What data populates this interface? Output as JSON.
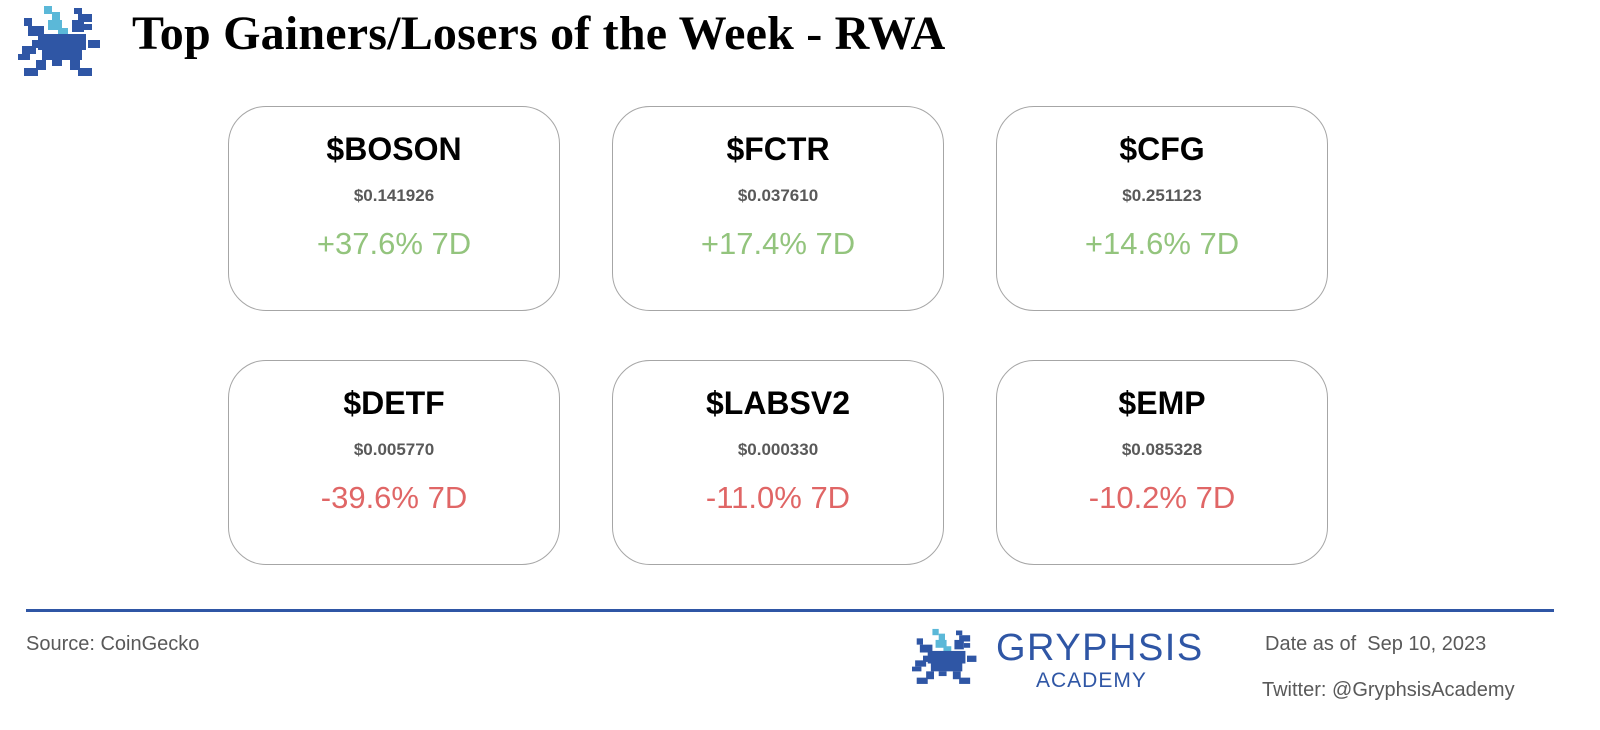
{
  "header": {
    "logo_icon": "griffin-pixel-logo-icon",
    "title": "Top Gainers/Losers of the Week - RWA"
  },
  "colors": {
    "gain": "#93c47d",
    "loss": "#e06666",
    "brand_blue": "#2f56a5",
    "brand_light_blue": "#5bb8d8",
    "card_border": "#a6a6a6"
  },
  "gainers": [
    {
      "ticker": "$BOSON",
      "price": "$0.141926",
      "change": "+37.6% 7D"
    },
    {
      "ticker": "$FCTR",
      "price": "$0.037610",
      "change": "+17.4% 7D"
    },
    {
      "ticker": "$CFG",
      "price": "$0.251123",
      "change": "+14.6% 7D"
    }
  ],
  "losers": [
    {
      "ticker": "$DETF",
      "price": "$0.005770",
      "change": "-39.6% 7D"
    },
    {
      "ticker": "$LABSV2",
      "price": "$0.000330",
      "change": "-11.0% 7D"
    },
    {
      "ticker": "$EMP",
      "price": "$0.085328",
      "change": "-10.2% 7D"
    }
  ],
  "footer": {
    "source": "Source: CoinGecko",
    "brand_name": "GRYPHSIS",
    "brand_sub": "ACADEMY",
    "date": "Date as of  Sep 10, 2023",
    "twitter": "Twitter: @GryphsisAcademy"
  }
}
